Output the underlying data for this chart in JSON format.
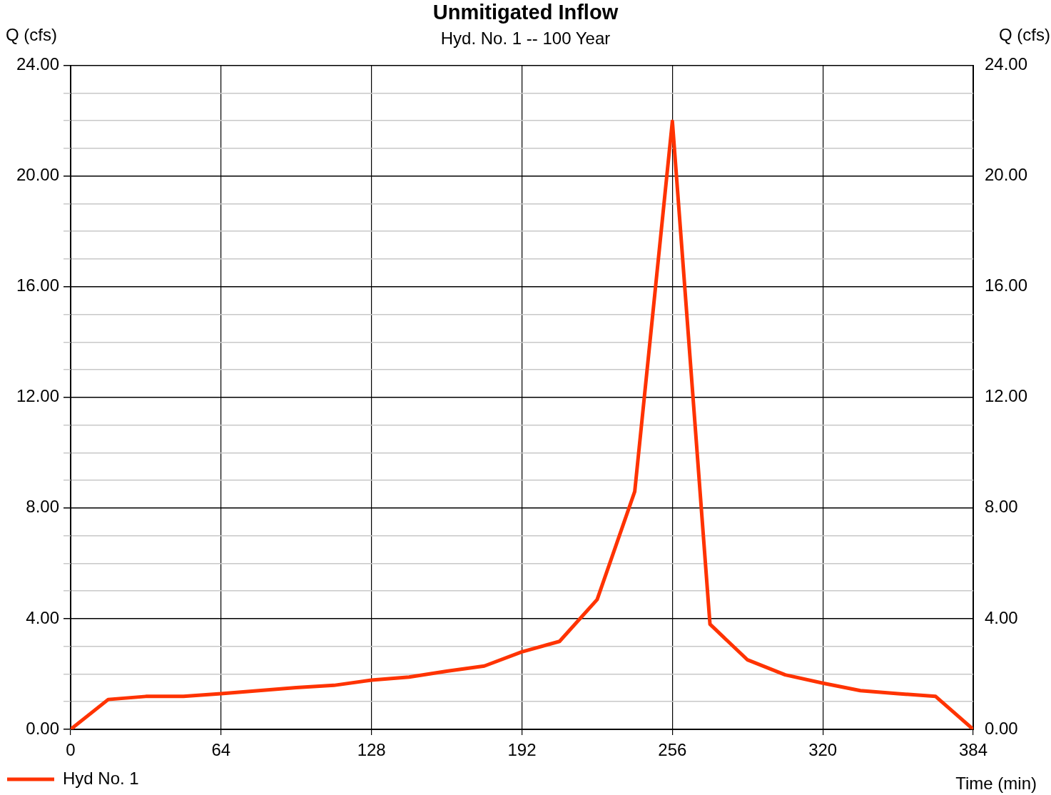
{
  "chart_data": {
    "type": "line",
    "title": "Unmitigated Inflow",
    "subtitle": "Hyd. No. 1 -- 100 Year",
    "xlabel": "Time (min)",
    "ylabel": "Q (cfs)",
    "y2label": "Q (cfs)",
    "x": [
      0,
      16,
      32,
      48,
      64,
      80,
      96,
      112,
      128,
      144,
      160,
      176,
      192,
      208,
      224,
      240,
      256,
      272,
      288,
      304,
      320,
      336,
      352,
      368,
      384
    ],
    "series": [
      {
        "name": "Hyd No. 1",
        "color": "#ff3300",
        "values": [
          0,
          1.08,
          1.19,
          1.19,
          1.29,
          1.4,
          1.51,
          1.59,
          1.78,
          1.89,
          2.1,
          2.29,
          2.8,
          3.18,
          4.69,
          8.6,
          21.98,
          3.8,
          2.51,
          1.97,
          1.67,
          1.4,
          1.29,
          1.19,
          0
        ]
      }
    ],
    "xlim": [
      0,
      384
    ],
    "xticks": [
      0,
      64,
      128,
      192,
      256,
      320,
      384
    ],
    "ylim": [
      0,
      24
    ],
    "yticks": [
      {
        "value": 0,
        "label": "0.00"
      },
      {
        "value": 1,
        "label": null
      },
      {
        "value": 2,
        "label": null
      },
      {
        "value": 3,
        "label": null
      },
      {
        "value": 4,
        "label": "4.00"
      },
      {
        "value": 5,
        "label": null
      },
      {
        "value": 6,
        "label": null
      },
      {
        "value": 7,
        "label": null
      },
      {
        "value": 8,
        "label": "8.00"
      },
      {
        "value": 9,
        "label": null
      },
      {
        "value": 10,
        "label": null
      },
      {
        "value": 11,
        "label": null
      },
      {
        "value": 12,
        "label": "12.00"
      },
      {
        "value": 13,
        "label": null
      },
      {
        "value": 14,
        "label": null
      },
      {
        "value": 15,
        "label": null
      },
      {
        "value": 16,
        "label": "16.00"
      },
      {
        "value": 17,
        "label": null
      },
      {
        "value": 18,
        "label": null
      },
      {
        "value": 19,
        "label": null
      },
      {
        "value": 20,
        "label": "20.00"
      },
      {
        "value": 21,
        "label": null
      },
      {
        "value": 22,
        "label": null
      },
      {
        "value": 23,
        "label": null
      },
      {
        "value": 24,
        "label": "24.00"
      }
    ],
    "y2lim": [
      0,
      24
    ],
    "y2ticks": [
      {
        "value": 0,
        "label": "0.00"
      },
      {
        "value": 4,
        "label": "4.00"
      },
      {
        "value": 8,
        "label": "8.00"
      },
      {
        "value": 12,
        "label": "12.00"
      },
      {
        "value": 16,
        "label": "16.00"
      },
      {
        "value": 20,
        "label": "20.00"
      },
      {
        "value": 24,
        "label": "24.00"
      }
    ],
    "grid": true,
    "legend": "bottom left",
    "marker": "none",
    "line_style": "solid"
  }
}
